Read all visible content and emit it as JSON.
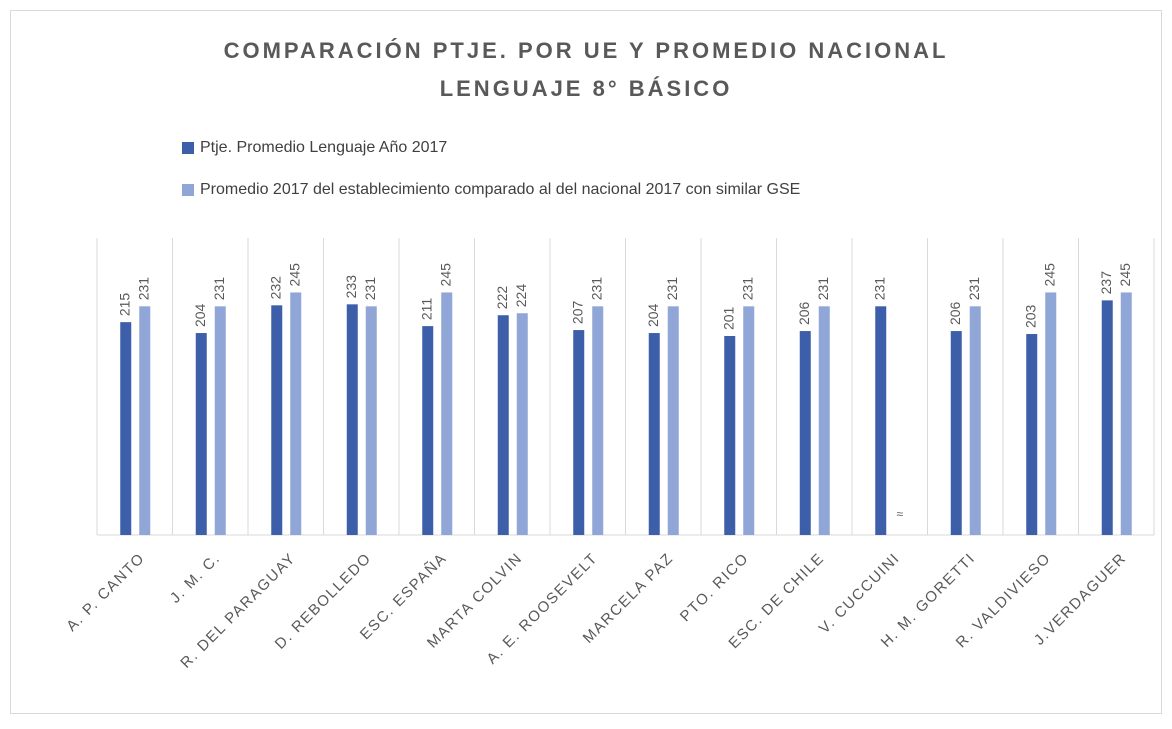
{
  "chart_data": {
    "type": "bar",
    "title": "COMPARACIÓN PTJE. POR UE Y PROMEDIO NACIONAL",
    "subtitle": "LENGUAJE 8° BÁSICO",
    "categories": [
      "A. P. CANTO",
      "J. M. C.",
      "R. DEL PARAGUAY",
      "D. REBOLLEDO",
      "ESC. ESPAÑA",
      "MARTA COLVIN",
      "A. E. ROOSEVELT",
      "MARCELA PAZ",
      "PTO. RICO",
      "ESC. DE CHILE",
      "V. CUCCUINI",
      "H. M. GORETTI",
      "R. VALDIVIESO",
      "J.VERDAGUER"
    ],
    "series": [
      {
        "name": "Ptje. Promedio Lenguaje Año 2017",
        "color": "#3d5fa9",
        "values": [
          215,
          204,
          232,
          233,
          211,
          222,
          207,
          204,
          201,
          206,
          231,
          206,
          203,
          237
        ]
      },
      {
        "name": "Promedio 2017 del establecimiento comparado al del nacional 2017 con similar GSE",
        "color": "#8fa6d6",
        "values": [
          231,
          231,
          245,
          231,
          245,
          224,
          231,
          231,
          231,
          231,
          null,
          231,
          245,
          245
        ],
        "value_labels": [
          "231",
          "231",
          "245",
          "231",
          "245",
          "224",
          "231",
          "231",
          "231",
          "231",
          "≈",
          "231",
          "245",
          "245"
        ]
      }
    ],
    "ylim": [
      0,
      300
    ]
  }
}
